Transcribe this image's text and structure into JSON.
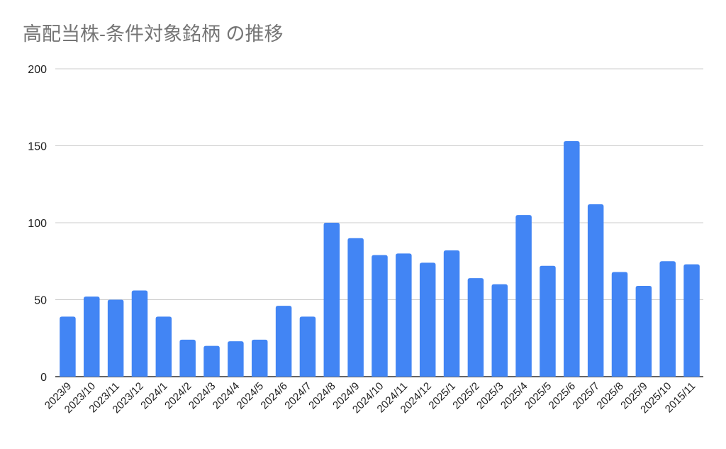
{
  "chart_data": {
    "type": "bar",
    "title": "高配当株-条件対象銘柄 の推移",
    "xlabel": "",
    "ylabel": "",
    "ylim": [
      0,
      200
    ],
    "yticks": [
      "0",
      "50",
      "100",
      "150",
      "200"
    ],
    "grid": true,
    "legend": "none",
    "bar_color": "#4285f4",
    "categories": [
      "2023/9",
      "2023/10",
      "2023/11",
      "2023/12",
      "2024/1",
      "2024/2",
      "2024/3",
      "2024/4",
      "2024/5",
      "2024/6",
      "2024/7",
      "2024/8",
      "2024/9",
      "2024/10",
      "2024/11",
      "2024/12",
      "2025/1",
      "2025/2",
      "2025/3",
      "2025/4",
      "2025/5",
      "2025/6",
      "2025/7",
      "2025/8",
      "2025/9",
      "2025/10",
      "2015/11"
    ],
    "values": [
      39,
      52,
      50,
      56,
      39,
      24,
      20,
      23,
      24,
      46,
      39,
      100,
      90,
      79,
      80,
      74,
      82,
      64,
      60,
      105,
      72,
      153,
      112,
      68,
      59,
      75,
      73
    ]
  }
}
